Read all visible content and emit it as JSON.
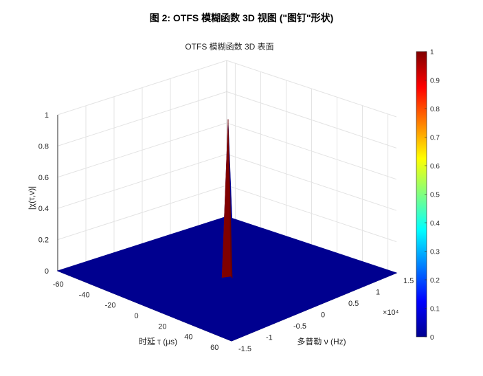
{
  "figure": {
    "title": "图 2: OTFS 模糊函数 3D 视图 (\"图钉\"形状)"
  },
  "chart_data": {
    "type": "surface3d",
    "title": "OTFS 模糊函数 3D 表面",
    "xlabel": "时延 τ (μs)",
    "ylabel": "多普勒 ν (Hz)",
    "zlabel": "|χ(τ,ν)|",
    "x_ticks": [
      "-60",
      "-40",
      "-20",
      "0",
      "20",
      "40",
      "60"
    ],
    "x_tick_values": [
      -60,
      -40,
      -20,
      0,
      20,
      40,
      60
    ],
    "xlim": [
      -66.7,
      66.7
    ],
    "y_ticks": [
      "-1.5",
      "-1",
      "-0.5",
      "0",
      "0.5",
      "1",
      "1.5"
    ],
    "y_tick_values": [
      -1.5,
      -1,
      -0.5,
      0,
      0.5,
      1,
      1.5
    ],
    "ylim": [
      -1.5,
      1.5
    ],
    "y_exponent": "×10⁴",
    "z_ticks": [
      "0",
      "0.2",
      "0.4",
      "0.6",
      "0.8",
      "1"
    ],
    "z_tick_values": [
      0,
      0.2,
      0.4,
      0.6,
      0.8,
      1
    ],
    "zlim": [
      0,
      1
    ],
    "peak": {
      "x": 0,
      "y": 0,
      "z": 1
    },
    "baseline_z": 0,
    "grid": true,
    "colormap": "jet",
    "colorbar": {
      "ticks": [
        "0",
        "0.1",
        "0.2",
        "0.3",
        "0.4",
        "0.5",
        "0.6",
        "0.7",
        "0.8",
        "0.9",
        "1"
      ],
      "tick_values": [
        0,
        0.1,
        0.2,
        0.3,
        0.4,
        0.5,
        0.6,
        0.7,
        0.8,
        0.9,
        1
      ],
      "range": [
        0,
        1
      ]
    },
    "colors": {
      "surface_low": "#00008f",
      "surface_high": "#800000"
    }
  }
}
